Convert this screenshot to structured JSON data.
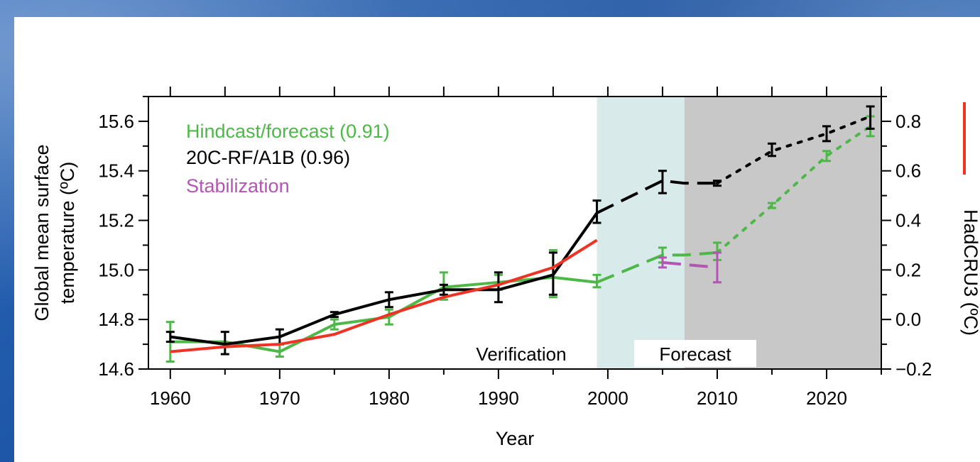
{
  "chart_data": {
    "type": "line",
    "xlabel": "Year",
    "ylabel_left": [
      "Global mean surface",
      "temperature (ºC)"
    ],
    "ylabel_right": "HadCRU3 (ºC)",
    "xlim": [
      1958,
      2025
    ],
    "ylim_left": [
      14.6,
      15.7
    ],
    "ylim_right": [
      -0.2,
      0.9
    ],
    "x_ticks": [
      1960,
      1970,
      1980,
      1990,
      2000,
      2010,
      2020
    ],
    "y_ticks_left": [
      "14.6",
      "14.8",
      "15.0",
      "15.2",
      "15.4",
      "15.6"
    ],
    "y_ticks_left_values": [
      14.6,
      14.8,
      15.0,
      15.2,
      15.4,
      15.6
    ],
    "y_ticks_right": [
      "−0.2",
      "0.0",
      "0.2",
      "0.4",
      "0.6",
      "0.8"
    ],
    "y_ticks_right_values": [
      -0.2,
      0.0,
      0.2,
      0.4,
      0.6,
      0.8
    ],
    "top_ticks": [
      1960,
      1965,
      1970,
      1975,
      1980,
      1985,
      1990,
      1995,
      2000,
      2005,
      2010,
      2015,
      2020,
      2025
    ],
    "regions": [
      {
        "label": "Verification",
        "from": 1999,
        "to": 2007,
        "color": "#d8eaea"
      },
      {
        "label": "Forecast",
        "from": 2007,
        "to": 2025,
        "color": "#c8c8c8"
      }
    ],
    "legend": [
      {
        "label": "Hindcast/forecast (0.91)",
        "color": "#4db848"
      },
      {
        "label": "20C-RF/A1B (0.96)",
        "color": "#000000"
      },
      {
        "label": "Stabilization",
        "color": "#b454b4"
      }
    ],
    "series": [
      {
        "name": "Hindcast/forecast (0.91)",
        "color": "#4db848",
        "segments": [
          {
            "style": "solid",
            "x": [
              1960,
              1965,
              1970,
              1975,
              1980,
              1985,
              1990,
              1995,
              1999
            ],
            "y": [
              14.71,
              14.71,
              14.67,
              14.78,
              14.81,
              14.93,
              14.95,
              14.97,
              14.95
            ]
          },
          {
            "style": "dashed",
            "x": [
              1999,
              2005,
              2007,
              2010
            ],
            "y": [
              14.95,
              15.06,
              15.06,
              15.07
            ]
          },
          {
            "style": "dotted",
            "x": [
              2010,
              2015,
              2020,
              2024
            ],
            "y": [
              15.07,
              15.26,
              15.46,
              15.58
            ]
          }
        ],
        "errorbars": [
          {
            "x": 1960,
            "lo": 14.63,
            "hi": 14.79
          },
          {
            "x": 1970,
            "lo": 14.65,
            "hi": 14.7
          },
          {
            "x": 1975,
            "lo": 14.76,
            "hi": 14.8
          },
          {
            "x": 1980,
            "lo": 14.78,
            "hi": 14.84
          },
          {
            "x": 1985,
            "lo": 14.88,
            "hi": 14.99
          },
          {
            "x": 1990,
            "lo": 14.92,
            "hi": 14.98
          },
          {
            "x": 1995,
            "lo": 14.89,
            "hi": 15.08
          },
          {
            "x": 1999,
            "lo": 14.93,
            "hi": 14.98
          },
          {
            "x": 2005,
            "lo": 15.03,
            "hi": 15.09
          },
          {
            "x": 2010,
            "lo": 15.04,
            "hi": 15.11
          },
          {
            "x": 2015,
            "lo": 15.25,
            "hi": 15.27
          },
          {
            "x": 2020,
            "lo": 15.44,
            "hi": 15.48
          },
          {
            "x": 2024,
            "lo": 15.54,
            "hi": 15.62
          }
        ]
      },
      {
        "name": "20C-RF/A1B (0.96)",
        "color": "#000000",
        "segments": [
          {
            "style": "solid",
            "x": [
              1960,
              1965,
              1970,
              1975,
              1980,
              1985,
              1990,
              1995,
              1999
            ],
            "y": [
              14.73,
              14.7,
              14.73,
              14.82,
              14.88,
              14.92,
              14.92,
              14.98,
              15.23
            ]
          },
          {
            "style": "dashed",
            "x": [
              1999,
              2005,
              2007,
              2010
            ],
            "y": [
              15.23,
              15.36,
              15.35,
              15.35
            ]
          },
          {
            "style": "dotted",
            "x": [
              2010,
              2015,
              2020,
              2024
            ],
            "y": [
              15.35,
              15.48,
              15.55,
              15.62
            ]
          }
        ],
        "errorbars": [
          {
            "x": 1960,
            "lo": 14.71,
            "hi": 14.75
          },
          {
            "x": 1965,
            "lo": 14.66,
            "hi": 14.75
          },
          {
            "x": 1970,
            "lo": 14.7,
            "hi": 14.76
          },
          {
            "x": 1975,
            "lo": 14.81,
            "hi": 14.83
          },
          {
            "x": 1980,
            "lo": 14.85,
            "hi": 14.91
          },
          {
            "x": 1985,
            "lo": 14.9,
            "hi": 14.94
          },
          {
            "x": 1990,
            "lo": 14.87,
            "hi": 14.99
          },
          {
            "x": 1995,
            "lo": 14.9,
            "hi": 15.07
          },
          {
            "x": 1999,
            "lo": 15.19,
            "hi": 15.28
          },
          {
            "x": 2005,
            "lo": 15.31,
            "hi": 15.4
          },
          {
            "x": 2010,
            "lo": 15.34,
            "hi": 15.36
          },
          {
            "x": 2015,
            "lo": 15.46,
            "hi": 15.51
          },
          {
            "x": 2020,
            "lo": 15.52,
            "hi": 15.58
          },
          {
            "x": 2024,
            "lo": 15.57,
            "hi": 15.66
          }
        ]
      },
      {
        "name": "Stabilization",
        "color": "#b454b4",
        "segments": [
          {
            "style": "dashed",
            "x": [
              2005,
              2010
            ],
            "y": [
              15.03,
              15.01
            ]
          }
        ],
        "errorbars": [
          {
            "x": 2005,
            "lo": 15.01,
            "hi": 15.05
          },
          {
            "x": 2010,
            "lo": 14.95,
            "hi": 15.07
          }
        ]
      },
      {
        "name": "HadCRU3",
        "color": "#ee3324",
        "axis": "right",
        "segments": [
          {
            "style": "solid",
            "x": [
              1960,
              1965,
              1970,
              1975,
              1980,
              1985,
              1990,
              1995,
              1999
            ],
            "y": [
              -0.13,
              -0.11,
              -0.1,
              -0.06,
              0.02,
              0.09,
              0.14,
              0.21,
              0.32
            ]
          }
        ],
        "errorbars": []
      }
    ]
  }
}
